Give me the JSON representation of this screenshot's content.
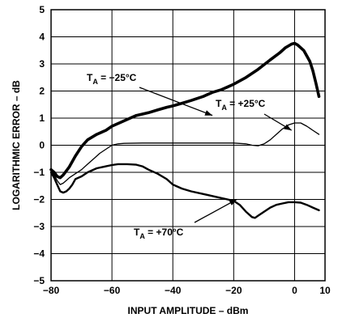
{
  "chart_data": {
    "type": "line",
    "xlabel": "INPUT AMPLITUDE – dBm",
    "ylabel": "LOGARITHMIC ERROR – dB",
    "xlim": [
      -80,
      10
    ],
    "ylim": [
      -5,
      5
    ],
    "x_ticks": [
      -80,
      -60,
      -40,
      -20,
      0,
      10
    ],
    "x_tick_labels": [
      "−80",
      "−60",
      "−40",
      "−20",
      "0",
      "10"
    ],
    "y_ticks": [
      -5,
      -4,
      -3,
      -2,
      -1,
      0,
      1,
      2,
      3,
      4,
      5
    ],
    "y_tick_labels": [
      "−5",
      "−4",
      "−3",
      "−2",
      "−1",
      "0",
      "1",
      "2",
      "3",
      "4",
      "5"
    ],
    "grid": true,
    "series": [
      {
        "name": "T_A = −25°C",
        "color": "#000000",
        "weight": "heavy",
        "x": [
          -80,
          -79,
          -78,
          -77,
          -76,
          -74,
          -72,
          -70,
          -68,
          -65,
          -62,
          -60,
          -57,
          -54,
          -52,
          -50,
          -48,
          -45,
          -42,
          -40,
          -37,
          -34,
          -30,
          -27,
          -24,
          -20,
          -16,
          -12,
          -8,
          -5,
          -3,
          -1,
          0,
          1,
          3,
          5,
          6,
          7,
          8
        ],
        "y": [
          -0.9,
          -1.0,
          -1.15,
          -1.2,
          -1.1,
          -0.8,
          -0.4,
          -0.05,
          0.2,
          0.4,
          0.55,
          0.7,
          0.85,
          1.0,
          1.1,
          1.15,
          1.2,
          1.3,
          1.4,
          1.45,
          1.55,
          1.65,
          1.8,
          1.95,
          2.05,
          2.25,
          2.5,
          2.8,
          3.15,
          3.4,
          3.6,
          3.73,
          3.76,
          3.7,
          3.5,
          3.1,
          2.75,
          2.3,
          1.8
        ]
      },
      {
        "name": "T_A = +25°C",
        "color": "#000000",
        "weight": "thin",
        "x": [
          -80,
          -79,
          -78,
          -77,
          -76,
          -75,
          -74,
          -72,
          -70,
          -68,
          -66,
          -64,
          -62,
          -60,
          -58,
          -56,
          -50,
          -40,
          -30,
          -20,
          -16,
          -14,
          -12,
          -10,
          -8,
          -6,
          -4,
          -2,
          0,
          2,
          4,
          6,
          8
        ],
        "y": [
          -0.9,
          -1.1,
          -1.3,
          -1.45,
          -1.4,
          -1.3,
          -1.2,
          -1.05,
          -0.9,
          -0.7,
          -0.5,
          -0.3,
          -0.15,
          0.0,
          0.05,
          0.07,
          0.08,
          0.08,
          0.08,
          0.08,
          0.05,
          0.0,
          -0.02,
          0.05,
          0.2,
          0.4,
          0.6,
          0.75,
          0.82,
          0.82,
          0.7,
          0.55,
          0.4
        ]
      },
      {
        "name": "T_A = +70°C",
        "color": "#000000",
        "weight": "medium",
        "x": [
          -80,
          -79,
          -78,
          -77,
          -76,
          -75,
          -74,
          -73,
          -72,
          -70,
          -68,
          -65,
          -62,
          -60,
          -58,
          -55,
          -52,
          -50,
          -48,
          -45,
          -42,
          -40,
          -37,
          -34,
          -30,
          -26,
          -22,
          -20,
          -18,
          -16,
          -14,
          -13,
          -12,
          -10,
          -8,
          -6,
          -4,
          -2,
          0,
          2,
          4,
          6,
          8
        ],
        "y": [
          -1.0,
          -1.2,
          -1.45,
          -1.7,
          -1.75,
          -1.7,
          -1.6,
          -1.45,
          -1.25,
          -1.15,
          -1.0,
          -0.85,
          -0.78,
          -0.73,
          -0.7,
          -0.7,
          -0.72,
          -0.78,
          -0.9,
          -1.05,
          -1.25,
          -1.45,
          -1.6,
          -1.7,
          -1.8,
          -1.9,
          -2.0,
          -2.05,
          -2.2,
          -2.45,
          -2.65,
          -2.68,
          -2.6,
          -2.45,
          -2.3,
          -2.2,
          -2.15,
          -2.1,
          -2.1,
          -2.12,
          -2.2,
          -2.3,
          -2.4
        ]
      }
    ],
    "annotations": [
      {
        "text_main": "T",
        "text_sub": "A",
        "text_rest": " = −25°C",
        "points_to_series": 0
      },
      {
        "text_main": "T",
        "text_sub": "A",
        "text_rest": " = +25°C",
        "points_to_series": 1
      },
      {
        "text_main": "T",
        "text_sub": "A",
        "text_rest": " = +70°C",
        "points_to_series": 2
      }
    ]
  }
}
